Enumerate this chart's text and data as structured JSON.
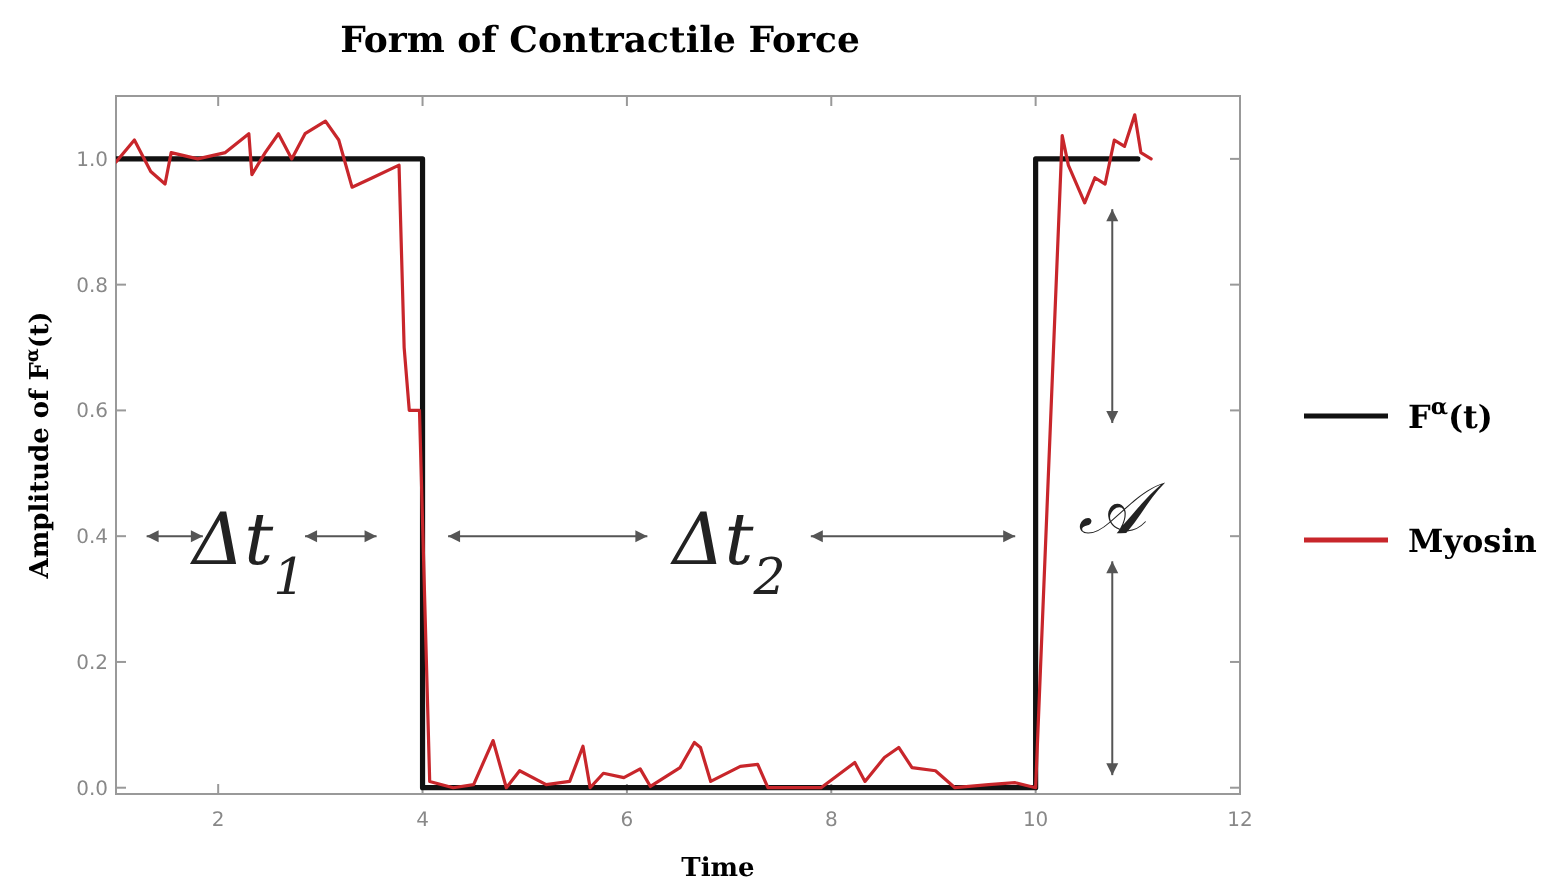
{
  "chart_data": {
    "type": "line",
    "title": "Form of Contractile Force",
    "xlabel": "Time",
    "ylabel": "Amplitude of F$^{α}$(t)",
    "xlim": [
      1,
      12
    ],
    "ylim": [
      -0.01,
      1.1
    ],
    "xticks": [
      2,
      4,
      6,
      8,
      10,
      12
    ],
    "yticks": [
      {
        "value": 0,
        "label": "0.0"
      },
      {
        "value": 0.2,
        "label": "0.2"
      },
      {
        "value": 0.4,
        "label": "0.4"
      },
      {
        "value": 0.6,
        "label": "0.6"
      },
      {
        "value": 0.8,
        "label": "0.8"
      },
      {
        "value": 1,
        "label": "1.0"
      }
    ],
    "grid": false,
    "legend": "right",
    "marker": "none",
    "line_style": "solid",
    "annotations": [
      "Δt$_{1}$",
      "Δt$_{2}$",
      "𝒜"
    ],
    "series": [
      {
        "name": "F$^{α}$(t)",
        "color": "#111111",
        "x": [
          1,
          4,
          4,
          10,
          10,
          11
        ],
        "values": [
          1,
          1,
          0,
          0,
          1,
          1
        ]
      },
      {
        "name": "Myosin",
        "color": "#c8262b",
        "x": [
          1.0,
          1.18,
          1.34,
          1.48,
          1.54,
          1.8,
          2.07,
          2.3,
          2.33,
          2.46,
          2.59,
          2.72,
          2.85,
          3.05,
          3.18,
          3.31,
          3.51,
          3.77,
          3.82,
          3.87,
          3.97,
          4.07,
          4.3,
          4.5,
          4.69,
          4.82,
          4.95,
          5.21,
          5.44,
          5.57,
          5.64,
          5.77,
          5.97,
          6.13,
          6.23,
          6.52,
          6.66,
          6.72,
          6.82,
          7.11,
          7.28,
          7.38,
          7.9,
          8.23,
          8.33,
          8.52,
          8.66,
          8.79,
          9.02,
          9.21,
          9.54,
          9.8,
          10.0,
          10.26,
          10.32,
          10.48,
          10.58,
          10.68,
          10.77,
          10.87,
          10.97,
          11.03,
          11.13
        ],
        "values": [
          0.995,
          1.03,
          0.98,
          0.96,
          1.01,
          1.0,
          1.01,
          1.04,
          0.975,
          1.01,
          1.04,
          1.0,
          1.04,
          1.06,
          1.03,
          0.955,
          0.97,
          0.99,
          0.7,
          0.6,
          0.6,
          0.01,
          0.0,
          0.005,
          0.075,
          0.0,
          0.027,
          0.005,
          0.01,
          0.066,
          0.0,
          0.023,
          0.016,
          0.03,
          0.002,
          0.032,
          0.072,
          0.064,
          0.01,
          0.034,
          0.037,
          0.0,
          0.0,
          0.04,
          0.01,
          0.048,
          0.064,
          0.032,
          0.027,
          0.0,
          0.005,
          0.008,
          0.0,
          1.037,
          0.99,
          0.93,
          0.97,
          0.96,
          1.03,
          1.02,
          1.07,
          1.01,
          1.0
        ]
      }
    ]
  }
}
